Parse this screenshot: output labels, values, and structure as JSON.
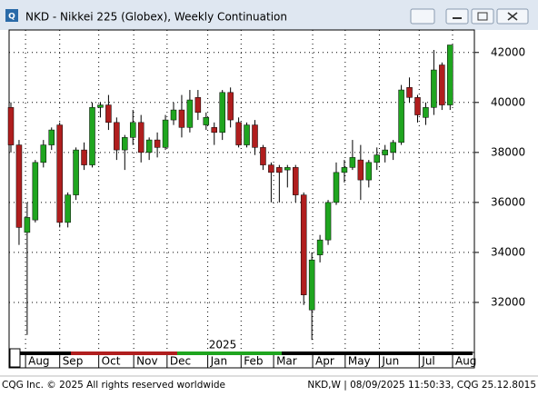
{
  "window": {
    "title": "NKD - Nikkei 225 (Globex), Weekly Continuation"
  },
  "footer": {
    "left": "CQG Inc. © 2025 All rights reserved worldwide",
    "right": "NKD,W | 08/09/2025 11:50:33, CQG 25.12.8015"
  },
  "chart_data": {
    "type": "candlestick",
    "year_label": "2025",
    "categories": [
      null,
      null,
      null,
      null,
      null,
      null,
      null,
      null,
      null,
      null,
      null,
      null,
      null,
      null,
      null,
      null,
      null,
      null,
      null,
      null,
      null,
      null,
      null,
      null,
      null,
      null,
      null,
      null,
      null,
      null,
      null,
      null,
      null,
      null,
      null,
      null,
      null,
      null,
      null,
      null,
      null,
      null,
      null,
      null,
      null,
      null,
      null,
      null,
      null,
      null,
      null,
      null,
      null,
      null,
      null
    ],
    "open": [
      39800,
      38300,
      34800,
      35300,
      37600,
      38300,
      39100,
      35200,
      36300,
      38100,
      37500,
      39800,
      39900,
      39200,
      38100,
      38600,
      39200,
      38000,
      38500,
      38200,
      39300,
      39700,
      39000,
      40200,
      39100,
      39000,
      38800,
      40400,
      39200,
      38300,
      39100,
      38200,
      37500,
      37400,
      37300,
      37400,
      36300,
      31700,
      33900,
      34500,
      36000,
      37200,
      37400,
      37700,
      36900,
      37600,
      37900,
      38000,
      38400,
      40600,
      40200,
      39400,
      39800,
      41500,
      39900
    ],
    "high": [
      40000,
      38500,
      36000,
      37700,
      38500,
      39000,
      39200,
      36400,
      38200,
      38400,
      40000,
      40000,
      40300,
      39400,
      38700,
      39700,
      39500,
      38600,
      38800,
      39500,
      40000,
      40300,
      40500,
      40500,
      39600,
      39200,
      40500,
      40600,
      39400,
      39200,
      39300,
      38300,
      37600,
      37500,
      37500,
      37500,
      36400,
      34000,
      34700,
      36100,
      37600,
      37700,
      38500,
      38300,
      37700,
      38200,
      38300,
      38500,
      40700,
      41000,
      40300,
      40000,
      42100,
      41600,
      42300
    ],
    "low": [
      38000,
      34300,
      30700,
      35200,
      37400,
      38100,
      35000,
      35000,
      36100,
      37300,
      37400,
      39400,
      38900,
      37700,
      37300,
      38300,
      37600,
      37700,
      37800,
      38100,
      39100,
      38600,
      38800,
      39300,
      38900,
      38300,
      38500,
      39000,
      38200,
      38200,
      37900,
      37300,
      36000,
      36000,
      36600,
      36000,
      31900,
      30500,
      33600,
      34300,
      35900,
      36800,
      37300,
      36100,
      36600,
      37300,
      37600,
      37700,
      38300,
      40000,
      39200,
      39100,
      39500,
      39700,
      39700
    ],
    "close": [
      38300,
      35000,
      35400,
      37600,
      38300,
      38900,
      35200,
      36300,
      38100,
      37500,
      39800,
      39900,
      39200,
      38100,
      38600,
      39200,
      38000,
      38500,
      38200,
      39300,
      39700,
      39000,
      40100,
      39600,
      39400,
      38800,
      40400,
      39300,
      38300,
      39100,
      38200,
      37500,
      37200,
      37200,
      37400,
      36300,
      32300,
      33700,
      34500,
      36000,
      37200,
      37400,
      37800,
      36900,
      37600,
      37900,
      38100,
      38400,
      40500,
      40200,
      39500,
      39800,
      41300,
      39900,
      42300
    ],
    "up_color": "#1fa51f",
    "down_color": "#b01e1e",
    "ylim": [
      30000,
      42900
    ],
    "yticks": [
      32000,
      34000,
      36000,
      38000,
      40000,
      42000
    ],
    "xticks": [
      {
        "value": 1.8,
        "label": "Aug"
      },
      {
        "value": 6.0,
        "label": "Sep"
      },
      {
        "value": 10.8,
        "label": "Oct"
      },
      {
        "value": 15.1,
        "label": "Nov"
      },
      {
        "value": 19.2,
        "label": "Dec"
      },
      {
        "value": 24.2,
        "label": "Jan"
      },
      {
        "value": 28.3,
        "label": "Feb"
      },
      {
        "value": 32.3,
        "label": "Mar"
      },
      {
        "value": 37.1,
        "label": "Apr"
      },
      {
        "value": 41.1,
        "label": "May"
      },
      {
        "value": 45.3,
        "label": "Jun"
      },
      {
        "value": 50.2,
        "label": "Jul"
      },
      {
        "value": 54.3,
        "label": "Aug"
      }
    ],
    "grid": true
  }
}
